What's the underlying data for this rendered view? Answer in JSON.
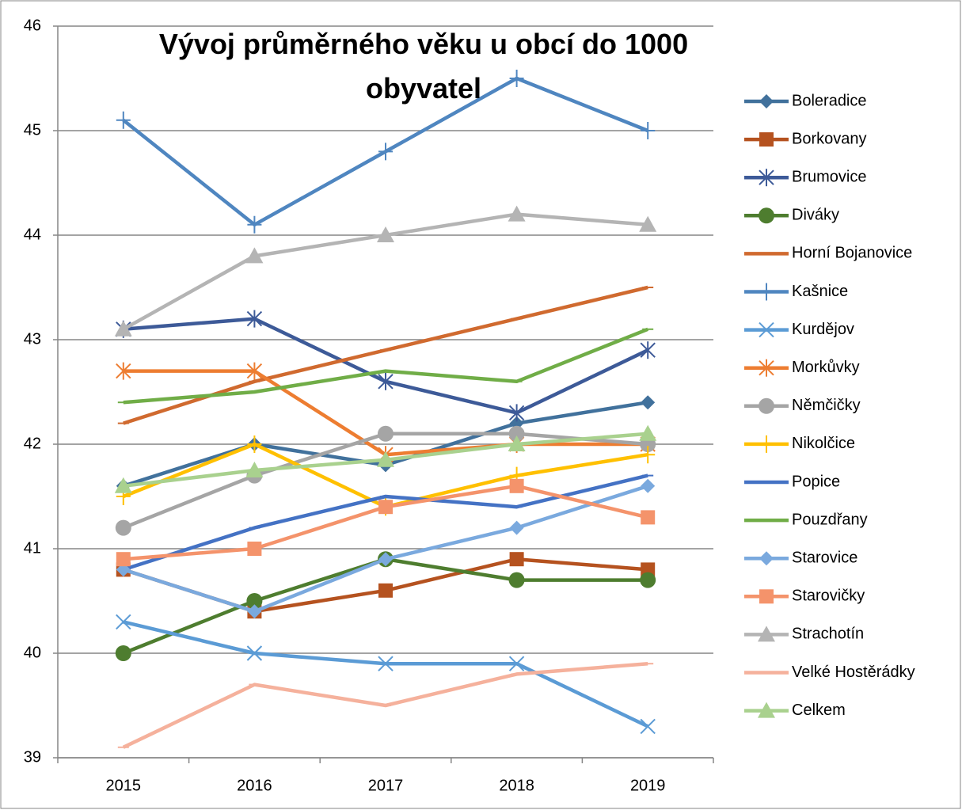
{
  "chart_data": {
    "type": "line",
    "title": "Vývoj průměrného věku u obcí do 1000 obyvatel",
    "categories": [
      "2015",
      "2016",
      "2017",
      "2018",
      "2019"
    ],
    "ylim": [
      39,
      46
    ],
    "yticks": [
      39,
      40,
      41,
      42,
      43,
      44,
      45,
      46
    ],
    "grid": true,
    "legend": "right",
    "series": [
      {
        "name": "Boleradice",
        "color": "#41719c",
        "marker": "diamond",
        "values": [
          41.6,
          42.0,
          41.8,
          42.2,
          42.4
        ]
      },
      {
        "name": "Borkovany",
        "color": "#b5521f",
        "marker": "square",
        "values": [
          40.8,
          40.4,
          40.6,
          40.9,
          40.8
        ]
      },
      {
        "name": "Brumovice",
        "color": "#3d5a98",
        "marker": "star",
        "values": [
          43.1,
          43.2,
          42.6,
          42.3,
          42.9
        ]
      },
      {
        "name": "Diváky",
        "color": "#4e7d2f",
        "marker": "circle",
        "values": [
          40.0,
          40.5,
          40.9,
          40.7,
          40.7
        ]
      },
      {
        "name": "Horní Bojanovice",
        "color": "#d06a2f",
        "marker": "dash",
        "values": [
          42.2,
          42.6,
          42.9,
          43.2,
          43.5
        ]
      },
      {
        "name": "Kašnice",
        "color": "#4f86c0",
        "marker": "plus",
        "values": [
          45.1,
          44.1,
          44.8,
          45.5,
          45.0
        ]
      },
      {
        "name": "Kurdějov",
        "color": "#5b9bd5",
        "marker": "x",
        "values": [
          40.3,
          40.0,
          39.9,
          39.9,
          39.3
        ]
      },
      {
        "name": "Morkůvky",
        "color": "#ed7d31",
        "marker": "star",
        "values": [
          42.7,
          42.7,
          41.9,
          42.0,
          42.0
        ]
      },
      {
        "name": "Němčičky",
        "color": "#a5a5a5",
        "marker": "circle",
        "values": [
          41.2,
          41.7,
          42.1,
          42.1,
          42.0
        ]
      },
      {
        "name": "Nikolčice",
        "color": "#ffc000",
        "marker": "plus",
        "values": [
          41.5,
          42.0,
          41.4,
          41.7,
          41.9
        ]
      },
      {
        "name": "Popice",
        "color": "#4472c4",
        "marker": "dash",
        "values": [
          40.8,
          41.2,
          41.5,
          41.4,
          41.7
        ]
      },
      {
        "name": "Pouzdřany",
        "color": "#70ad47",
        "marker": "dash",
        "values": [
          42.4,
          42.5,
          42.7,
          42.6,
          43.1
        ]
      },
      {
        "name": "Starovice",
        "color": "#7aa9de",
        "marker": "diamond",
        "values": [
          40.8,
          40.4,
          40.9,
          41.2,
          41.6
        ]
      },
      {
        "name": "Starovičky",
        "color": "#f4936b",
        "marker": "square",
        "values": [
          40.9,
          41.0,
          41.4,
          41.6,
          41.3
        ]
      },
      {
        "name": "Strachotín",
        "color": "#b4b4b4",
        "marker": "triangle",
        "values": [
          43.1,
          43.8,
          44.0,
          44.2,
          44.1
        ]
      },
      {
        "name": "Velké Hostěrádky",
        "color": "#f5b19c",
        "marker": "dash",
        "values": [
          39.1,
          39.7,
          39.5,
          39.8,
          39.9
        ]
      },
      {
        "name": "Celkem",
        "color": "#a9d18e",
        "marker": "triangle",
        "values": [
          41.6,
          41.75,
          41.85,
          42.0,
          42.1
        ]
      }
    ]
  }
}
